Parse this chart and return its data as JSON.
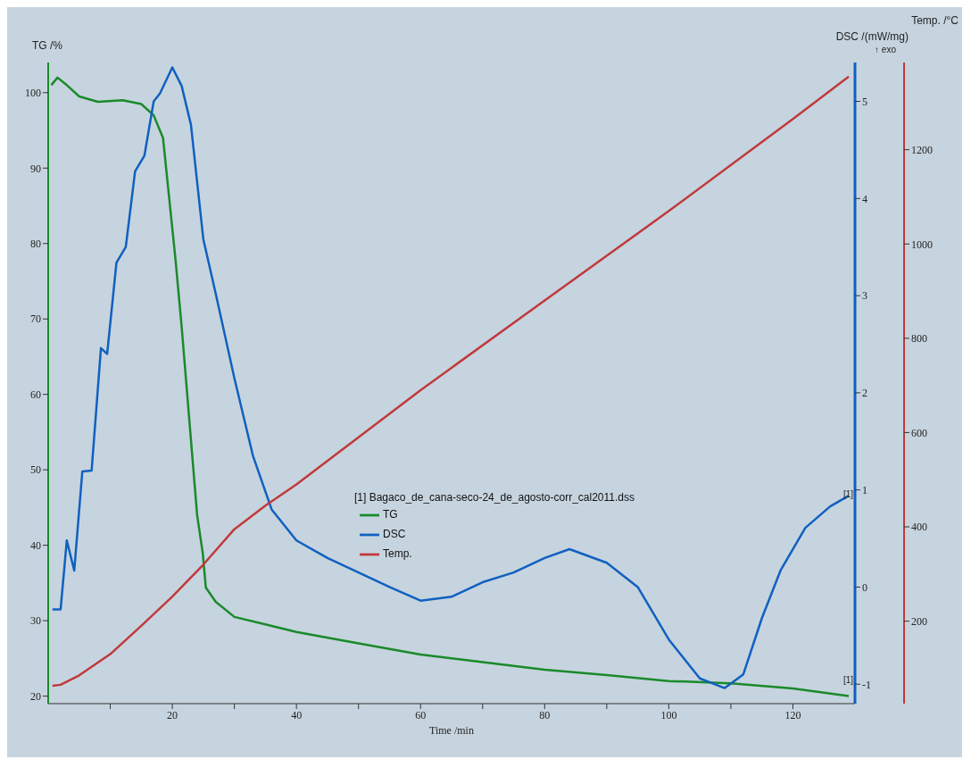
{
  "chart_data": {
    "type": "line",
    "xlabel": "Time /min",
    "ylabel": "TG /%",
    "y2label": "DSC /(mW/mg)",
    "y3label": "Temp. /°C",
    "legend_title": "[1] Bagaco_de_cana-seco-24_de_agosto-corr_cal2011.dss",
    "legend": "center",
    "grid": false,
    "marker": "none",
    "line_style": "solid",
    "xlim": [
      0,
      130
    ],
    "xticks": [
      {
        "value": 10,
        "label": null
      },
      20,
      {
        "value": 30,
        "label": null
      },
      40,
      {
        "value": 50,
        "label": null
      },
      60,
      {
        "value": 70,
        "label": null
      },
      80,
      {
        "value": 90,
        "label": null
      },
      100,
      {
        "value": 110,
        "label": null
      },
      120
    ],
    "ylim": [
      19,
      104
    ],
    "yticks": [
      20,
      30,
      40,
      50,
      60,
      70,
      80,
      90,
      100
    ],
    "y2lim": [
      -1.2,
      5.4
    ],
    "y2ticks": [
      -1,
      0,
      1,
      2,
      3,
      4,
      5
    ],
    "y3lim": [
      25,
      1385
    ],
    "y3ticks": [
      200,
      400,
      600,
      800,
      1000,
      1200
    ],
    "annotations": [
      "↑ exo",
      "[1]",
      "[1]"
    ],
    "series": [
      {
        "name": "TG",
        "color": "#1a8a2a",
        "x": [
          0.5,
          1.5,
          3,
          5,
          8,
          12,
          15,
          17,
          18.5,
          19.5,
          20.5,
          21.5,
          22.3,
          23,
          24,
          24.9,
          25.4,
          27,
          30,
          35,
          40,
          50,
          60,
          70,
          80,
          90,
          100,
          110,
          120,
          129
        ],
        "values": [
          101,
          102,
          101,
          99.5,
          98.8,
          99,
          98.5,
          97,
          94,
          86,
          78,
          69,
          61,
          54,
          44,
          39,
          34.4,
          32.5,
          30.5,
          29.5,
          28.5,
          27,
          25.5,
          24.5,
          23.5,
          22.8,
          22,
          21.7,
          21,
          20
        ]
      },
      {
        "name": "DSC",
        "color": "#1060c0",
        "axis": "y2",
        "x": [
          0.7,
          2,
          3,
          4.2,
          5.5,
          7,
          8.5,
          9.5,
          11,
          12.5,
          14,
          15.5,
          17,
          18,
          20,
          21.5,
          23,
          25,
          27,
          30,
          33,
          36,
          40,
          45,
          50,
          55,
          60,
          65,
          70,
          75,
          80,
          84,
          90,
          95,
          100,
          105,
          109,
          112,
          115,
          118,
          122,
          126,
          129
        ],
        "values": [
          -0.23,
          -0.23,
          0.48,
          0.17,
          1.19,
          1.2,
          2.46,
          2.4,
          3.34,
          3.5,
          4.28,
          4.44,
          5.0,
          5.08,
          5.35,
          5.16,
          4.76,
          3.58,
          3.02,
          2.15,
          1.35,
          0.8,
          0.48,
          0.3,
          0.15,
          0.0,
          -0.14,
          -0.1,
          0.05,
          0.15,
          0.3,
          0.39,
          0.25,
          0.0,
          -0.54,
          -0.94,
          -1.04,
          -0.9,
          -0.32,
          0.17,
          0.61,
          0.83,
          0.94
        ]
      },
      {
        "name": "Temp.",
        "color": "#c0393b",
        "axis": "y3",
        "x": [
          0.7,
          2,
          5,
          10,
          15,
          20,
          25,
          30,
          35,
          40,
          60,
          80,
          100,
          120,
          129
        ],
        "values": [
          63,
          65,
          85,
          130,
          190,
          252,
          320,
          395,
          445,
          490,
          690,
          880,
          1070,
          1265,
          1355
        ]
      }
    ]
  }
}
